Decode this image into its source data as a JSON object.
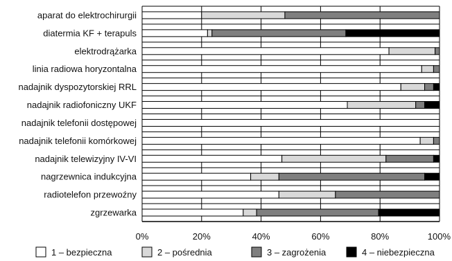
{
  "chart_data": {
    "type": "bar",
    "orientation": "horizontal",
    "stacked": "percent",
    "title": "",
    "xlabel": "",
    "ylabel": "",
    "xlim": [
      0,
      100
    ],
    "x_ticks": [
      "0%",
      "20%",
      "40%",
      "60%",
      "80%",
      "100%"
    ],
    "grid": true,
    "legend_position": "bottom",
    "categories": [
      "aparat do elektrochirurgii",
      "diatermia KF + terapuls",
      "elektrodrążarka",
      "linia radiowa horyzontalna",
      "nadajnik dyspozytorskiej RRL",
      "nadajnik radiofoniczny UKF",
      "nadajnik telefonii dostępowej",
      "nadajnik telefonii komórkowej",
      "nadajnik telewizyjny IV-VI",
      "nagrzewnica indukcyjna",
      "radiotelefon przewoźny",
      "zgrzewarka"
    ],
    "series": [
      {
        "name": "1 – bezpieczna",
        "color": "#ffffff",
        "values": [
          20,
          22,
          83,
          94,
          87,
          69,
          100,
          93.5,
          47,
          36.5,
          46,
          34
        ]
      },
      {
        "name": "2 – pośrednia",
        "color": "#d9d9d9",
        "values": [
          28,
          1.5,
          15.5,
          4,
          8,
          23,
          0,
          4.5,
          35,
          9.5,
          19,
          4.5
        ]
      },
      {
        "name": "3 – zagrożenia",
        "color": "#7f7f7f",
        "values": [
          52,
          45,
          1.5,
          2,
          3,
          3,
          0,
          2,
          16,
          49,
          35,
          41
        ]
      },
      {
        "name": "4 – niebezpieczna",
        "color": "#000000",
        "values": [
          0,
          31.5,
          0,
          0,
          2,
          5,
          0,
          0,
          2,
          5,
          0,
          20.5
        ]
      }
    ]
  }
}
